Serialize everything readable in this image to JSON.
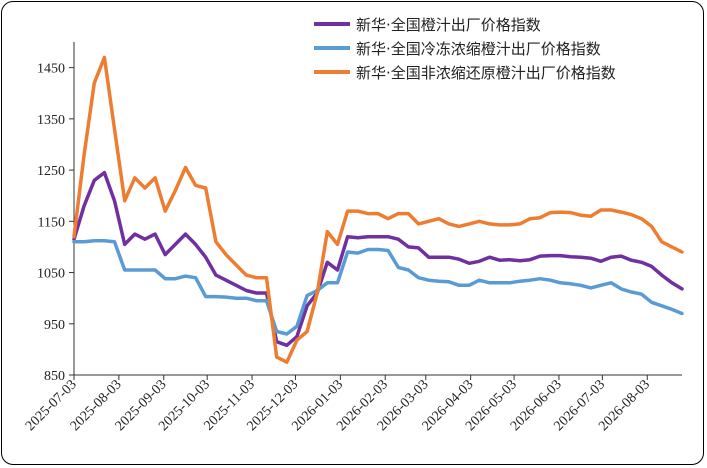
{
  "chart_data": {
    "type": "line",
    "title": "",
    "xlabel": "",
    "ylabel": "",
    "ylim": [
      850,
      1500
    ],
    "yticks": [
      850,
      950,
      1050,
      1150,
      1250,
      1350,
      1450
    ],
    "xtick_labels": [
      "2025-07-03",
      "2025-08-03",
      "2025-09-03",
      "2025-10-03",
      "2025-11-03",
      "2025-12-03",
      "2026-01-03",
      "2026-02-03",
      "2026-03-03",
      "2026-04-03",
      "2026-05-03",
      "2026-06-03",
      "2026-07-03",
      "2026-08-03"
    ],
    "x_start": "2025-07-03",
    "x_step_days": 7,
    "legend_position": "top-right",
    "series": [
      {
        "name": "新华·全国橙汁出厂价格指数",
        "color": "#7030a0",
        "values": [
          1115,
          1180,
          1230,
          1245,
          1190,
          1105,
          1125,
          1115,
          1125,
          1085,
          1105,
          1125,
          1105,
          1080,
          1045,
          1035,
          1025,
          1015,
          1010,
          1010,
          915,
          908,
          925,
          985,
          1010,
          1070,
          1055,
          1120,
          1118,
          1120,
          1120,
          1120,
          1115,
          1100,
          1098,
          1080,
          1080,
          1080,
          1076,
          1068,
          1072,
          1080,
          1074,
          1075,
          1073,
          1075,
          1082,
          1083,
          1083,
          1081,
          1080,
          1078,
          1072,
          1080,
          1082,
          1074,
          1070,
          1062,
          1045,
          1030,
          1018
        ]
      },
      {
        "name": "新华·全国冷冻浓缩橙汁出厂价格指数",
        "color": "#5b9bd5",
        "values": [
          1110,
          1110,
          1112,
          1112,
          1110,
          1055,
          1055,
          1055,
          1055,
          1038,
          1038,
          1043,
          1040,
          1003,
          1003,
          1002,
          1000,
          1000,
          995,
          995,
          935,
          930,
          945,
          1005,
          1015,
          1030,
          1030,
          1090,
          1088,
          1095,
          1095,
          1093,
          1060,
          1055,
          1040,
          1035,
          1033,
          1032,
          1025,
          1025,
          1035,
          1030,
          1030,
          1030,
          1033,
          1035,
          1038,
          1035,
          1030,
          1028,
          1025,
          1020,
          1025,
          1030,
          1018,
          1012,
          1008,
          992,
          985,
          978,
          970
        ]
      },
      {
        "name": "新华·全国非浓缩还原橙汁出厂价格指数",
        "color": "#ed7d31",
        "values": [
          1120,
          1280,
          1420,
          1470,
          1330,
          1190,
          1235,
          1215,
          1235,
          1170,
          1210,
          1255,
          1220,
          1215,
          1110,
          1085,
          1065,
          1045,
          1040,
          1040,
          885,
          875,
          918,
          935,
          1010,
          1130,
          1105,
          1170,
          1170,
          1165,
          1165,
          1155,
          1165,
          1165,
          1145,
          1150,
          1155,
          1145,
          1140,
          1145,
          1150,
          1145,
          1143,
          1143,
          1145,
          1155,
          1157,
          1167,
          1168,
          1167,
          1162,
          1160,
          1172,
          1172,
          1168,
          1163,
          1155,
          1140,
          1110,
          1100,
          1090
        ]
      }
    ]
  }
}
